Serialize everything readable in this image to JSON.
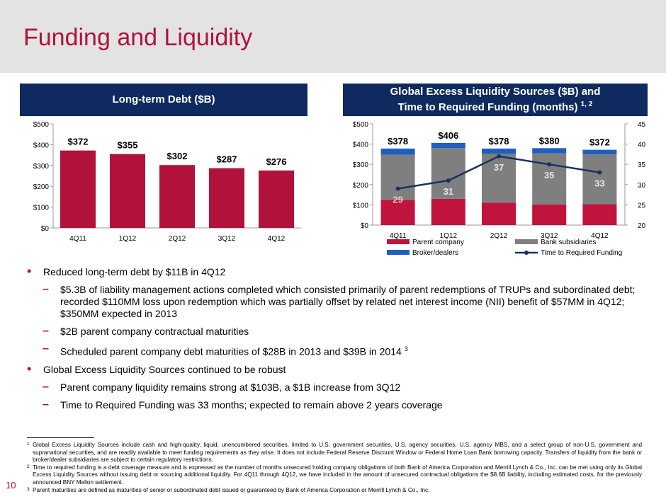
{
  "title": "Funding and Liquidity",
  "page_number": "10",
  "colors": {
    "accent_red": "#b0123b",
    "navy": "#0f2a5e",
    "bar_red": "#b0123b",
    "parent_company": "#c0143c",
    "bank_subsidiaries": "#7f7f7f",
    "broker_dealers": "#1f5fbf",
    "line_navy": "#17325f"
  },
  "chart_data": [
    {
      "type": "bar",
      "title": "Long-term Debt ($B)",
      "categories": [
        "4Q11",
        "1Q12",
        "2Q12",
        "3Q12",
        "4Q12"
      ],
      "values": [
        372,
        355,
        302,
        287,
        276
      ],
      "data_labels": [
        "$372",
        "$355",
        "$302",
        "$287",
        "$276"
      ],
      "ylim": [
        0,
        500
      ],
      "y_ticks": [
        "$0",
        "$100",
        "$200",
        "$300",
        "$400",
        "$500"
      ],
      "xlabel": "",
      "ylabel": "",
      "legend": "none"
    },
    {
      "type": "bar",
      "stacked": true,
      "title": "Global Excess Liquidity Sources ($B) and",
      "title_line2": "Time to Required Funding (months)",
      "title_sup": "1, 2",
      "categories": [
        "4Q11",
        "1Q12",
        "2Q12",
        "3Q12",
        "4Q12"
      ],
      "series": [
        {
          "name": "Parent company",
          "values": [
            125,
            130,
            110,
            102,
            103
          ]
        },
        {
          "name": "Bank subsidiaries",
          "values": [
            222,
            250,
            243,
            253,
            246
          ]
        },
        {
          "name": "Broker/dealers",
          "values": [
            31,
            26,
            25,
            25,
            23
          ]
        }
      ],
      "totals": [
        378,
        406,
        378,
        380,
        372
      ],
      "total_labels": [
        "$378",
        "$406",
        "$378",
        "$380",
        "$372"
      ],
      "line_series": {
        "name": "Time to Required Funding",
        "values": [
          29,
          31,
          37,
          35,
          33
        ],
        "labels": [
          "29",
          "31",
          "37",
          "35",
          "33"
        ]
      },
      "ylim": [
        0,
        500
      ],
      "y_ticks": [
        "$0",
        "$100",
        "$200",
        "$300",
        "$400",
        "$500"
      ],
      "y2lim": [
        20,
        45
      ],
      "y2_ticks": [
        "20",
        "25",
        "30",
        "35",
        "40",
        "45"
      ],
      "legend": "bottom",
      "legend_entries": [
        "Parent company",
        "Bank subsidiaries",
        "Broker/dealers",
        "Time to Required Funding"
      ]
    }
  ],
  "bullets": [
    {
      "level": 1,
      "text": "Reduced long-term debt by $11B in 4Q12"
    },
    {
      "level": 2,
      "text": "$5.3B of liability management actions completed which consisted primarily of parent redemptions of TRUPs and subordinated debt; recorded $110MM loss upon redemption which was partially offset by related net interest income (NII) benefit of $57MM in 4Q12; $350MM expected in 2013"
    },
    {
      "level": 2,
      "text": "$2B parent company contractual maturities"
    },
    {
      "level": 2,
      "text": "Scheduled parent company debt maturities of $28B in 2013 and $39B in 2014",
      "sup": "3"
    },
    {
      "level": 1,
      "text": "Global Excess Liquidity Sources continued to be robust"
    },
    {
      "level": 2,
      "text": "Parent company liquidity remains strong at $103B, a $1B increase from 3Q12"
    },
    {
      "level": 2,
      "text": "Time to Required Funding was 33 months; expected to remain above 2 years coverage"
    }
  ],
  "footnotes": [
    {
      "num": "1",
      "text": "Global Excess Liquidity Sources include cash and high-quality, liquid, unencumbered securities, limited to U.S. government securities, U.S. agency securities, U.S. agency MBS, and a select group of non-U.S. government and supranational securities, and are readily available to meet funding requirements as they arise. It does not include Federal Reserve Discount Window or Federal Home Loan Bank borrowing capacity. Transfers of liquidity from the bank or broker/dealer subsidiaries are subject to certain regulatory restrictions."
    },
    {
      "num": "2",
      "text": "Time to required funding is a debt coverage measure and is expressed as the number of months unsecured holding company obligations of both Bank of America Corporation and Merrill Lynch & Co., Inc. can be met using only its Global Excess Liquidity Sources without issuing debt or sourcing additional liquidity. For 4Q11 through 4Q12, we have included in the amount of unsecured contractual obligations the $8.6B liability, including estimated costs, for the previously announced BNY Mellon settlement."
    },
    {
      "num": "3",
      "text": "Parent maturities are defined as maturities of senior or subordinated debt issued or guaranteed by Bank of America Corporation or Merrill Lynch & Co., Inc."
    }
  ]
}
